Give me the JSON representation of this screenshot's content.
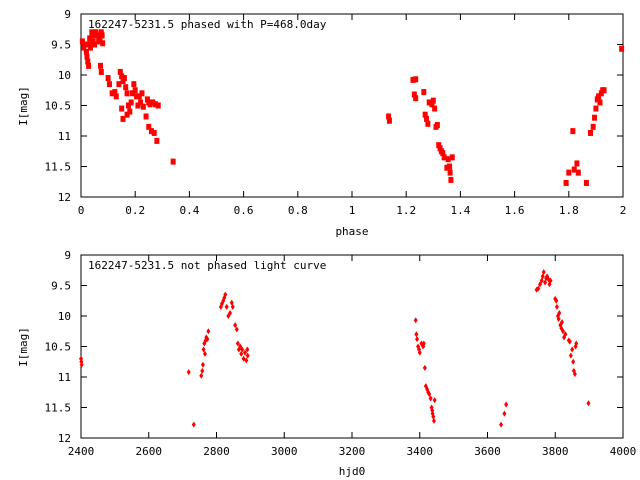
{
  "chart_data": [
    {
      "type": "scatter",
      "title": "162247-5231.5 phased with P=468.0day",
      "xlabel": "phase",
      "ylabel": "I[mag]",
      "xlim": [
        0,
        2
      ],
      "ylim": [
        9,
        12
      ],
      "y_inverted": true,
      "grid": false,
      "legend": "none",
      "x_ticks": [
        "0",
        "0.2",
        "0.4",
        "0.6",
        "0.8",
        "1",
        "1.2",
        "1.4",
        "1.6",
        "1.8",
        "2"
      ],
      "y_ticks": [
        "9",
        "9.5",
        "10",
        "10.5",
        "11",
        "11.5",
        "12"
      ],
      "x_tick_values": [
        0,
        0.2,
        0.4,
        0.6,
        0.8,
        1.0,
        1.2,
        1.4,
        1.6,
        1.8,
        2.0
      ],
      "y_tick_values": [
        9,
        9.5,
        10,
        10.5,
        11,
        11.5,
        12
      ],
      "marker_color": "#ff0000",
      "series": [
        {
          "points": [
            [
              0.005,
              9.45
            ],
            [
              0.01,
              9.55
            ],
            [
              0.015,
              9.5
            ],
            [
              0.02,
              9.62
            ],
            [
              0.022,
              9.7
            ],
            [
              0.025,
              9.78
            ],
            [
              0.028,
              9.85
            ],
            [
              0.03,
              9.5
            ],
            [
              0.032,
              9.4
            ],
            [
              0.035,
              9.55
            ],
            [
              0.04,
              9.3
            ],
            [
              0.042,
              9.35
            ],
            [
              0.045,
              9.45
            ],
            [
              0.05,
              9.5
            ],
            [
              0.055,
              9.3
            ],
            [
              0.06,
              9.35
            ],
            [
              0.065,
              9.45
            ],
            [
              0.068,
              9.38
            ],
            [
              0.07,
              9.42
            ],
            [
              0.075,
              9.3
            ],
            [
              0.078,
              9.35
            ],
            [
              0.08,
              9.48
            ],
            [
              0.072,
              9.85
            ],
            [
              0.075,
              9.95
            ],
            [
              0.1,
              10.05
            ],
            [
              0.105,
              10.15
            ],
            [
              0.115,
              10.3
            ],
            [
              0.125,
              10.28
            ],
            [
              0.13,
              10.35
            ],
            [
              0.14,
              10.15
            ],
            [
              0.145,
              9.95
            ],
            [
              0.15,
              10.02
            ],
            [
              0.155,
              10.1
            ],
            [
              0.16,
              10.05
            ],
            [
              0.165,
              10.2
            ],
            [
              0.17,
              10.3
            ],
            [
              0.175,
              10.5
            ],
            [
              0.18,
              10.6
            ],
            [
              0.185,
              10.45
            ],
            [
              0.19,
              10.3
            ],
            [
              0.195,
              10.15
            ],
            [
              0.2,
              10.25
            ],
            [
              0.205,
              10.35
            ],
            [
              0.21,
              10.5
            ],
            [
              0.215,
              10.35
            ],
            [
              0.15,
              10.55
            ],
            [
              0.155,
              10.72
            ],
            [
              0.17,
              10.65
            ],
            [
              0.22,
              10.45
            ],
            [
              0.225,
              10.3
            ],
            [
              0.23,
              10.52
            ],
            [
              0.24,
              10.68
            ],
            [
              0.245,
              10.4
            ],
            [
              0.25,
              10.45
            ],
            [
              0.255,
              10.48
            ],
            [
              0.265,
              10.45
            ],
            [
              0.275,
              10.48
            ],
            [
              0.285,
              10.5
            ],
            [
              0.25,
              10.85
            ],
            [
              0.26,
              10.92
            ],
            [
              0.27,
              10.95
            ],
            [
              0.28,
              11.08
            ],
            [
              0.34,
              11.42
            ],
            [
              1.135,
              10.68
            ],
            [
              1.138,
              10.75
            ],
            [
              1.225,
              10.08
            ],
            [
              1.235,
              10.07
            ],
            [
              1.23,
              10.32
            ],
            [
              1.235,
              10.38
            ],
            [
              1.265,
              10.28
            ],
            [
              1.27,
              10.65
            ],
            [
              1.275,
              10.72
            ],
            [
              1.28,
              10.8
            ],
            [
              1.285,
              10.45
            ],
            [
              1.295,
              10.48
            ],
            [
              1.3,
              10.42
            ],
            [
              1.305,
              10.55
            ],
            [
              1.31,
              10.85
            ],
            [
              1.315,
              10.82
            ],
            [
              1.32,
              11.15
            ],
            [
              1.325,
              11.2
            ],
            [
              1.33,
              11.25
            ],
            [
              1.335,
              11.28
            ],
            [
              1.34,
              11.35
            ],
            [
              1.35,
              11.52
            ],
            [
              1.355,
              11.38
            ],
            [
              1.36,
              11.5
            ],
            [
              1.362,
              11.6
            ],
            [
              1.365,
              11.72
            ],
            [
              1.37,
              11.35
            ],
            [
              1.79,
              11.77
            ],
            [
              1.8,
              11.6
            ],
            [
              1.815,
              10.92
            ],
            [
              1.82,
              11.55
            ],
            [
              1.83,
              11.45
            ],
            [
              1.835,
              11.6
            ],
            [
              1.865,
              11.77
            ],
            [
              1.88,
              10.95
            ],
            [
              1.89,
              10.85
            ],
            [
              1.895,
              10.7
            ],
            [
              1.9,
              10.55
            ],
            [
              1.905,
              10.4
            ],
            [
              1.91,
              10.35
            ],
            [
              1.915,
              10.45
            ],
            [
              1.92,
              10.3
            ],
            [
              1.925,
              10.25
            ],
            [
              1.93,
              10.25
            ],
            [
              1.995,
              9.57
            ]
          ]
        }
      ]
    },
    {
      "type": "scatter",
      "title": "162247-5231.5 not phased light curve",
      "xlabel": "hjd0",
      "ylabel": "I[mag]",
      "xlim": [
        2400,
        4000
      ],
      "ylim": [
        9,
        12
      ],
      "y_inverted": true,
      "grid": false,
      "legend": "none",
      "x_ticks": [
        "2400",
        "2600",
        "2800",
        "3000",
        "3200",
        "3400",
        "3600",
        "3800",
        "4000"
      ],
      "y_ticks": [
        "9",
        "9.5",
        "10",
        "10.5",
        "11",
        "11.5",
        "12"
      ],
      "x_tick_values": [
        2400,
        2600,
        2800,
        3000,
        3200,
        3400,
        3600,
        3800,
        4000
      ],
      "y_tick_values": [
        9,
        9.5,
        10,
        10.5,
        11,
        11.5,
        12
      ],
      "marker_color": "#ff0000",
      "series": [
        {
          "points": [
            [
              2400,
              10.7
            ],
            [
              2401,
              10.75
            ],
            [
              2402,
              10.8
            ],
            [
              2718,
              10.92
            ],
            [
              2733,
              11.78
            ],
            [
              2755,
              10.98
            ],
            [
              2758,
              10.9
            ],
            [
              2760,
              10.8
            ],
            [
              2762,
              10.55
            ],
            [
              2764,
              10.45
            ],
            [
              2766,
              10.62
            ],
            [
              2768,
              10.4
            ],
            [
              2770,
              10.35
            ],
            [
              2773,
              10.38
            ],
            [
              2776,
              10.25
            ],
            [
              2813,
              9.85
            ],
            [
              2816,
              9.8
            ],
            [
              2820,
              9.75
            ],
            [
              2823,
              9.7
            ],
            [
              2826,
              9.65
            ],
            [
              2830,
              9.85
            ],
            [
              2835,
              10.0
            ],
            [
              2840,
              9.95
            ],
            [
              2845,
              9.78
            ],
            [
              2848,
              9.85
            ],
            [
              2855,
              10.15
            ],
            [
              2860,
              10.22
            ],
            [
              2863,
              10.45
            ],
            [
              2866,
              10.55
            ],
            [
              2870,
              10.5
            ],
            [
              2873,
              10.62
            ],
            [
              2876,
              10.55
            ],
            [
              2880,
              10.7
            ],
            [
              2884,
              10.6
            ],
            [
              2888,
              10.73
            ],
            [
              2892,
              10.65
            ],
            [
              2891,
              10.55
            ],
            [
              3388,
              10.07
            ],
            [
              3390,
              10.3
            ],
            [
              3392,
              10.38
            ],
            [
              3395,
              10.5
            ],
            [
              3398,
              10.55
            ],
            [
              3400,
              10.6
            ],
            [
              3405,
              10.45
            ],
            [
              3410,
              10.5
            ],
            [
              3412,
              10.45
            ],
            [
              3415,
              10.85
            ],
            [
              3418,
              11.15
            ],
            [
              3422,
              11.2
            ],
            [
              3425,
              11.25
            ],
            [
              3428,
              11.28
            ],
            [
              3432,
              11.35
            ],
            [
              3435,
              11.5
            ],
            [
              3437,
              11.55
            ],
            [
              3438,
              11.6
            ],
            [
              3440,
              11.65
            ],
            [
              3442,
              11.72
            ],
            [
              3444,
              11.38
            ],
            [
              3640,
              11.78
            ],
            [
              3650,
              11.6
            ],
            [
              3655,
              11.45
            ],
            [
              3745,
              9.57
            ],
            [
              3750,
              9.55
            ],
            [
              3755,
              9.48
            ],
            [
              3760,
              9.42
            ],
            [
              3763,
              9.35
            ],
            [
              3766,
              9.28
            ],
            [
              3770,
              9.45
            ],
            [
              3773,
              9.38
            ],
            [
              3776,
              9.35
            ],
            [
              3780,
              9.4
            ],
            [
              3783,
              9.48
            ],
            [
              3786,
              9.42
            ],
            [
              3800,
              9.72
            ],
            [
              3803,
              9.75
            ],
            [
              3805,
              9.85
            ],
            [
              3808,
              10.0
            ],
            [
              3810,
              10.05
            ],
            [
              3812,
              9.95
            ],
            [
              3815,
              10.15
            ],
            [
              3818,
              10.2
            ],
            [
              3820,
              10.1
            ],
            [
              3823,
              10.25
            ],
            [
              3826,
              10.35
            ],
            [
              3830,
              10.3
            ],
            [
              3840,
              10.4
            ],
            [
              3843,
              10.42
            ],
            [
              3846,
              10.65
            ],
            [
              3850,
              10.55
            ],
            [
              3853,
              10.75
            ],
            [
              3855,
              10.9
            ],
            [
              3858,
              10.95
            ],
            [
              3860,
              10.5
            ],
            [
              3862,
              10.45
            ],
            [
              3898,
              11.43
            ]
          ]
        }
      ]
    }
  ]
}
